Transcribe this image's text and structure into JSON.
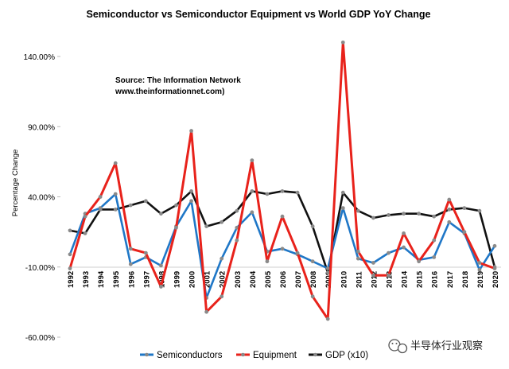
{
  "chart_data": {
    "type": "line",
    "title": "Semiconductor vs Semiconductor Equipment vs World GDP YoY Change",
    "source_line1": "Source: The Information Network",
    "source_line2": "www.theinformationnet.com)",
    "ylabel": "Percentage Change",
    "xlabel": "",
    "ylim": [
      -60,
      140
    ],
    "yticks": [
      140,
      90,
      40,
      -10,
      -60
    ],
    "ytick_labels": [
      "140.00%",
      "90.00%",
      "40.00%",
      "-10.00%",
      "-60.00%"
    ],
    "categories": [
      "1992",
      "1993",
      "1994",
      "1995",
      "1996",
      "1997",
      "1998",
      "1999",
      "2000",
      "2001",
      "2002",
      "2003",
      "2004",
      "2005",
      "2006",
      "2007",
      "2008",
      "2009",
      "2010",
      "2011",
      "2012",
      "2013",
      "2014",
      "2015",
      "2016",
      "2017",
      "2018",
      "2019",
      "2020"
    ],
    "series": [
      {
        "name": "Semiconductors",
        "color": "#1f77c7",
        "values": [
          -1,
          28,
          32,
          42,
          -8,
          -3,
          -9,
          19,
          37,
          -32,
          -4,
          18,
          29,
          1,
          3,
          -1,
          -6,
          -11,
          32,
          -4,
          -7,
          0,
          4,
          -5,
          -3,
          22,
          14,
          -12,
          5
        ]
      },
      {
        "name": "Equipment",
        "color": "#e8221b",
        "values": [
          -11,
          26,
          40,
          64,
          3,
          0,
          -24,
          18,
          87,
          -42,
          -31,
          9,
          66,
          -6,
          26,
          0,
          -31,
          -47,
          150,
          1,
          -16,
          -16,
          14,
          -6,
          9,
          38,
          15,
          -7,
          -11
        ]
      },
      {
        "name": "GDP (x10)",
        "color": "#111111",
        "values": [
          16,
          14,
          31,
          31,
          34,
          37,
          28,
          34,
          44,
          19,
          22,
          30,
          44,
          42,
          44,
          43,
          19,
          -14,
          43,
          30,
          25,
          27,
          28,
          28,
          26,
          31,
          32,
          30,
          -10
        ]
      }
    ],
    "legend_position": "bottom"
  },
  "watermark": {
    "text": "半导体行业观察",
    "icon": "wechat-icon"
  }
}
